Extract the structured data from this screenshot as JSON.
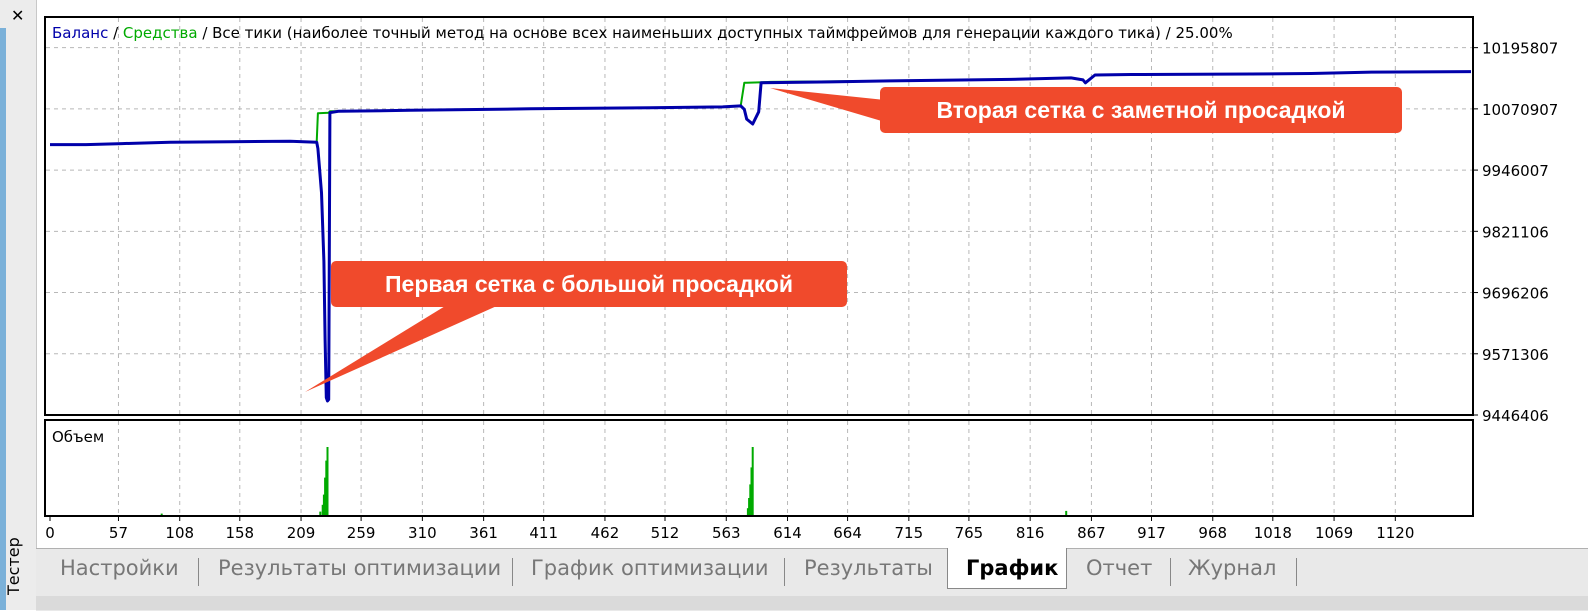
{
  "window": {
    "close_glyph": "✕",
    "side_tab_label": "Тестер"
  },
  "legend": {
    "balance": "Баланс",
    "separator1": " / ",
    "equity": "Средства",
    "separator2": " / ",
    "method": "Все тики (наиболее точный метод на основе всех наименьших доступных таймфреймов для генерации каждого тика)",
    "separator3": " / ",
    "quality": "25.00%"
  },
  "volume_label": "Объем",
  "colors": {
    "balance": "#0000aa",
    "equity": "#00aa00",
    "volume": "#00aa00",
    "callout": "#f04a2c",
    "grid": "#b8b8b8"
  },
  "annotations": {
    "first": "Первая сетка с большой просадкой",
    "second": "Вторая сетка с заметной просадкой"
  },
  "tabs": [
    {
      "label": "Настройки",
      "active": false
    },
    {
      "label": "Результаты оптимизации",
      "active": false
    },
    {
      "label": "График оптимизации",
      "active": false
    },
    {
      "label": "Результаты",
      "active": false
    },
    {
      "label": "График",
      "active": true
    },
    {
      "label": "Отчет",
      "active": false
    },
    {
      "label": "Журнал",
      "active": false
    }
  ],
  "chart_data": {
    "type": "line",
    "legend_placement": "top-left",
    "grid": true,
    "xlim": [
      0,
      1183
    ],
    "ylim": [
      9446406,
      10258307
    ],
    "x_ticks": [
      0,
      57,
      108,
      158,
      209,
      259,
      310,
      361,
      411,
      462,
      512,
      563,
      614,
      664,
      715,
      765,
      816,
      867,
      917,
      968,
      1018,
      1069,
      1120
    ],
    "y_ticks": [
      10195807,
      10070907,
      9946007,
      9821106,
      9696206,
      9571306,
      9446406
    ],
    "series": [
      {
        "name": "Баланс",
        "x": [
          0,
          30,
          60,
          100,
          150,
          200,
          222,
          223,
          226,
          228,
          229,
          230,
          231,
          232,
          233,
          240,
          300,
          400,
          500,
          560,
          575,
          578,
          580,
          585,
          590,
          592,
          650,
          700,
          800,
          850,
          860,
          862,
          870,
          900,
          1000,
          1050,
          1100,
          1183
        ],
        "y": [
          9998000,
          9998000,
          10000000,
          10003000,
          10004000,
          10005000,
          10003000,
          9990000,
          9900000,
          9760000,
          9600000,
          9482000,
          9475000,
          9478000,
          10063000,
          10066000,
          10068000,
          10071000,
          10073000,
          10075000,
          10077000,
          10070000,
          10050000,
          10040000,
          10065000,
          10124000,
          10126000,
          10128000,
          10131000,
          10134000,
          10130000,
          10124000,
          10140000,
          10141000,
          10142000,
          10143000,
          10146000,
          10147000
        ]
      },
      {
        "name": "Средства",
        "x": [
          0,
          30,
          60,
          100,
          150,
          200,
          222,
          223,
          232,
          233,
          300,
          400,
          500,
          560,
          575,
          578,
          580,
          600,
          700,
          800,
          850,
          860,
          862,
          870,
          900,
          1000,
          1050,
          1100,
          1183
        ],
        "y": [
          9998000,
          9998000,
          10000000,
          10003000,
          10004000,
          10005000,
          10003000,
          10062000,
          10063000,
          10066000,
          10068000,
          10071000,
          10073000,
          10075000,
          10077000,
          10124000,
          10124000,
          10126000,
          10128000,
          10131000,
          10134000,
          10130000,
          10124000,
          10140000,
          10141000,
          10142000,
          10143000,
          10146000,
          10147000
        ]
      }
    ],
    "volume": {
      "label": "Объем",
      "spikes": [
        {
          "x": 225,
          "value": 0.05
        },
        {
          "x": 227,
          "value": 0.15
        },
        {
          "x": 228,
          "value": 0.3
        },
        {
          "x": 229,
          "value": 0.55
        },
        {
          "x": 230,
          "value": 0.8
        },
        {
          "x": 231,
          "value": 1.0
        },
        {
          "x": 581,
          "value": 0.1
        },
        {
          "x": 582,
          "value": 0.25
        },
        {
          "x": 583,
          "value": 0.45
        },
        {
          "x": 584,
          "value": 0.7
        },
        {
          "x": 585,
          "value": 1.0
        },
        {
          "x": 93,
          "value": 0.02
        },
        {
          "x": 846,
          "value": 0.06
        }
      ]
    }
  }
}
